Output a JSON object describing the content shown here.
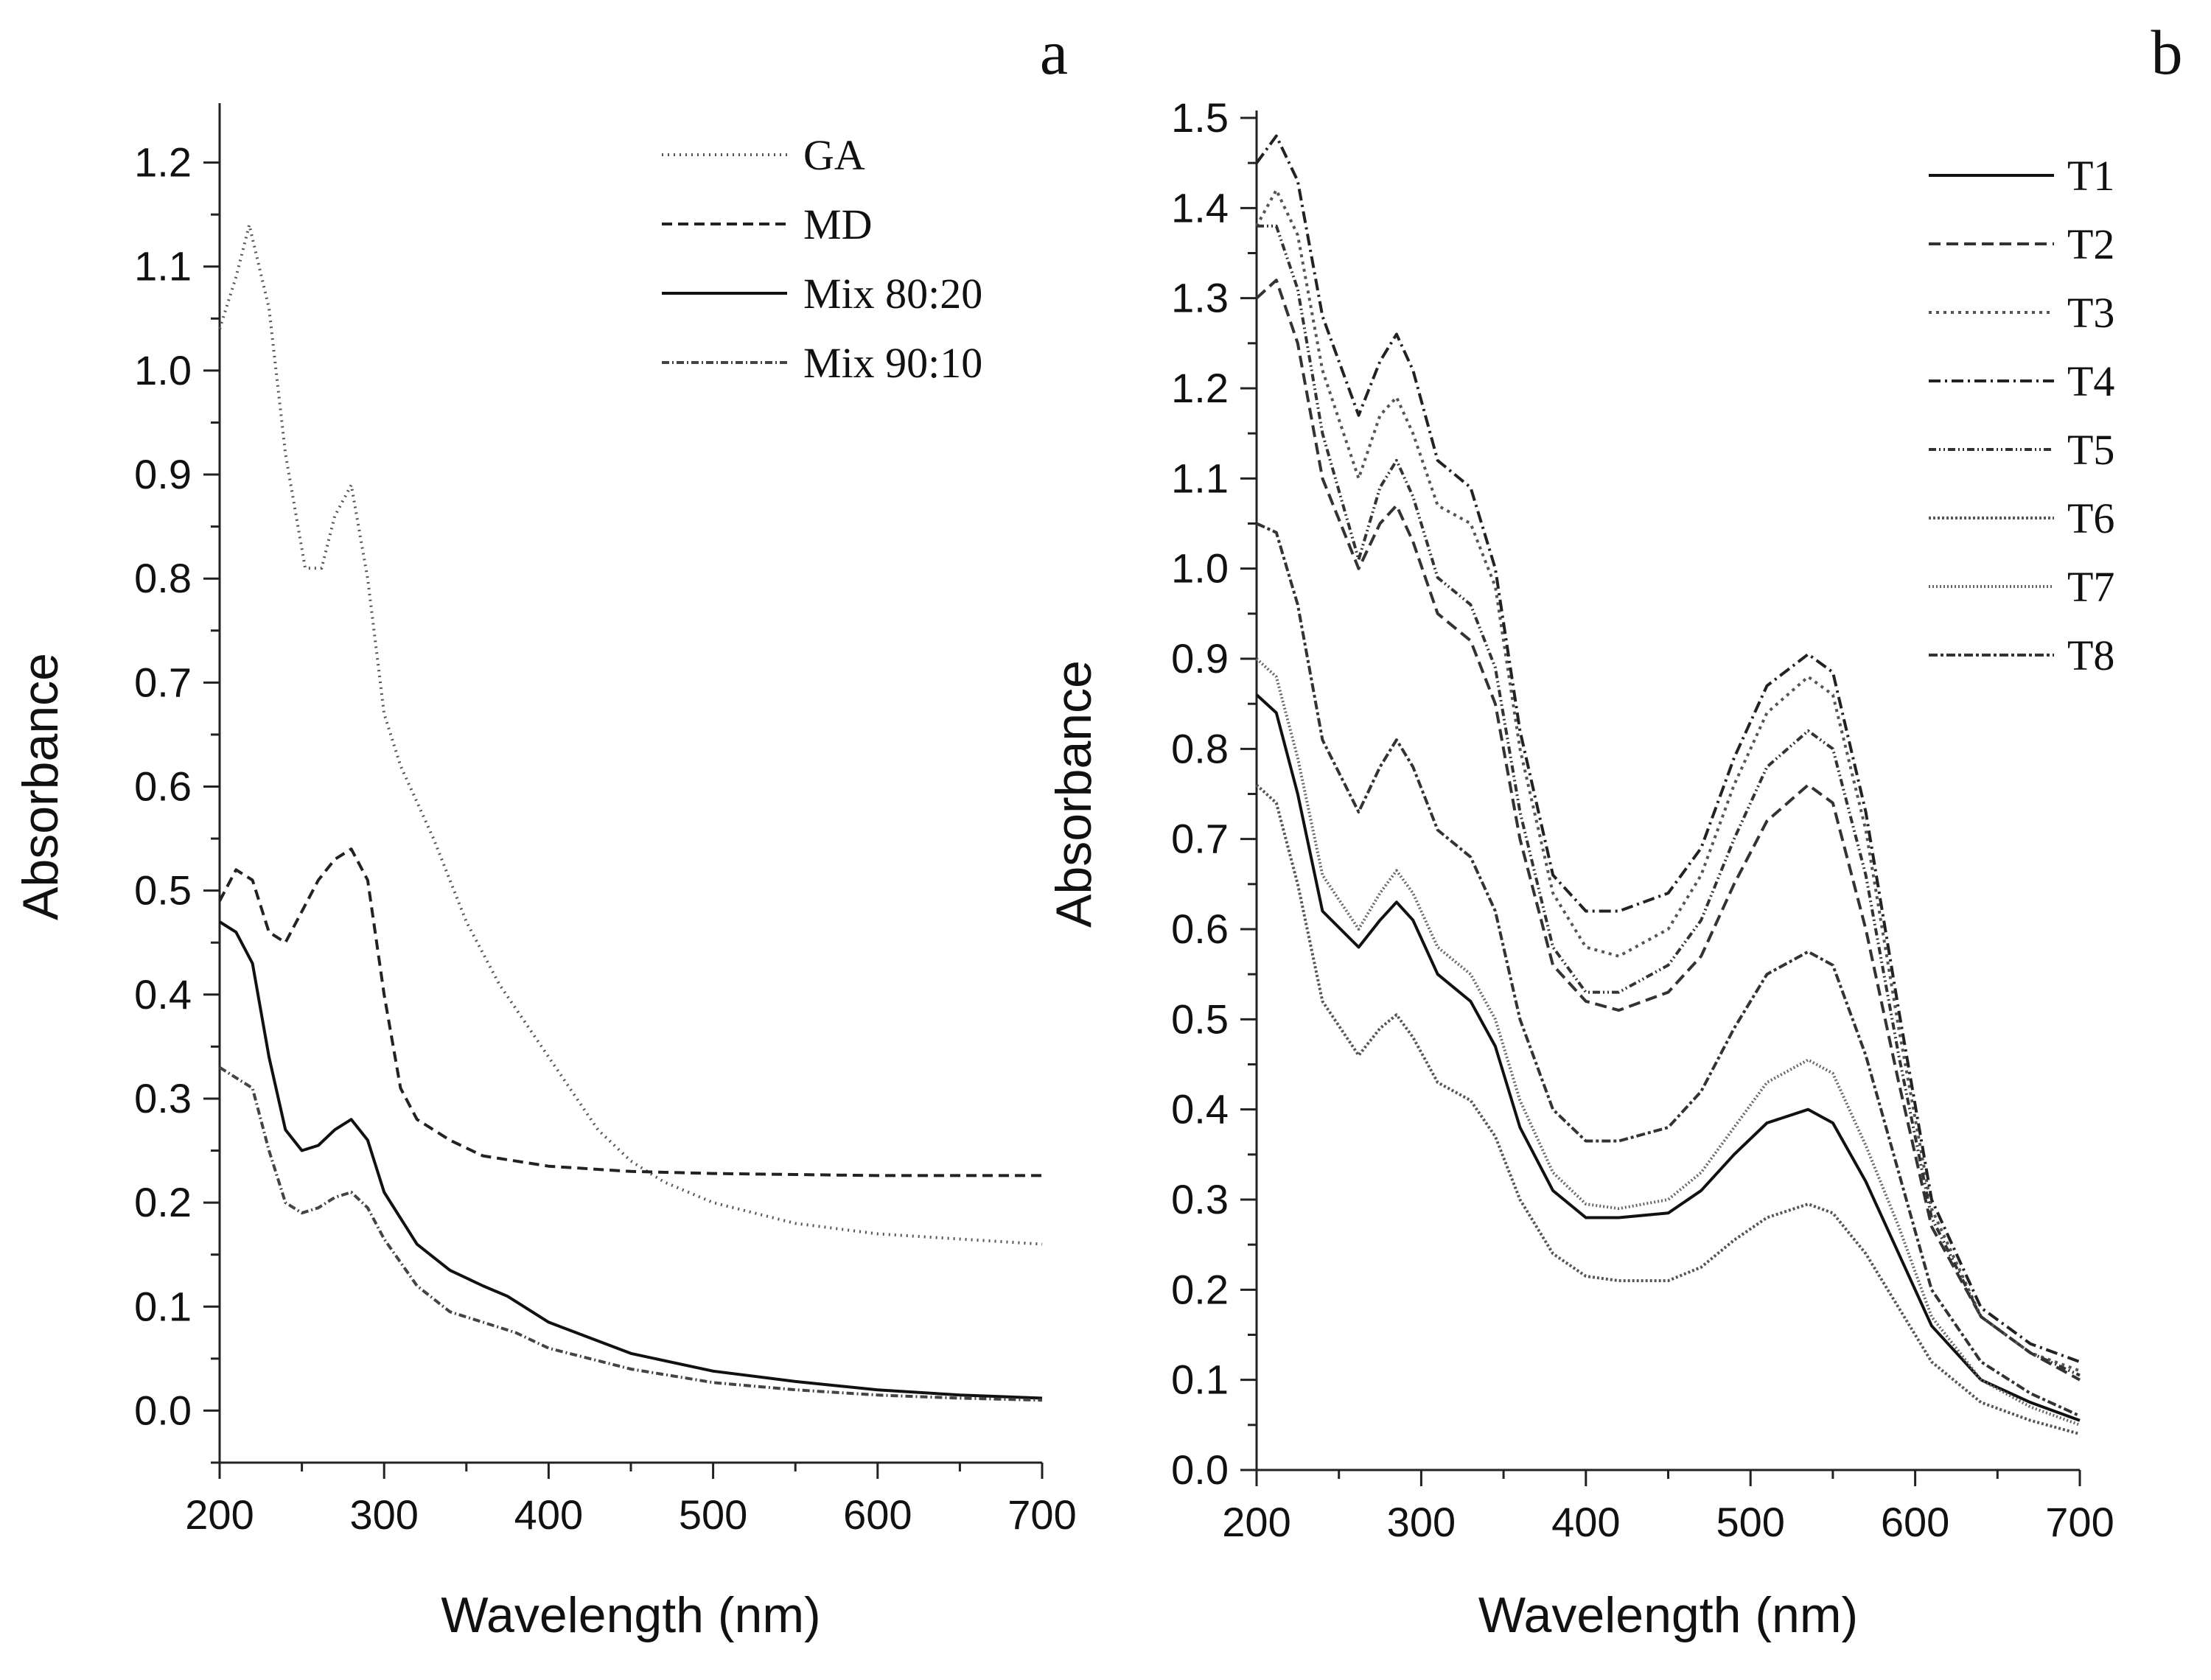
{
  "chart_data": [
    {
      "panel_label": "a",
      "type": "line",
      "xlabel": "Wavelength (nm)",
      "ylabel": "Absorbance",
      "xlim": [
        200,
        700
      ],
      "ylim": [
        -0.05,
        1.25
      ],
      "xticks": [
        "200",
        "300",
        "400",
        "500",
        "600",
        "700"
      ],
      "yticks": [
        "0.0",
        "0.1",
        "0.2",
        "0.3",
        "0.4",
        "0.5",
        "0.6",
        "0.7",
        "0.8",
        "0.9",
        "1.0",
        "1.1",
        "1.2"
      ],
      "legend_position": "top-right",
      "series": [
        {
          "name": "GA",
          "color": "#555555",
          "dash": "2,6",
          "x": [
            200,
            210,
            218,
            230,
            240,
            252,
            262,
            270,
            280,
            290,
            300,
            310,
            330,
            350,
            370,
            400,
            430,
            450,
            470,
            500,
            550,
            600,
            650,
            700
          ],
          "y": [
            1.04,
            1.09,
            1.14,
            1.06,
            0.92,
            0.81,
            0.81,
            0.86,
            0.89,
            0.8,
            0.67,
            0.62,
            0.55,
            0.47,
            0.41,
            0.34,
            0.27,
            0.24,
            0.22,
            0.2,
            0.18,
            0.17,
            0.165,
            0.16
          ]
        },
        {
          "name": "MD",
          "color": "#222222",
          "dash": "14,8",
          "x": [
            200,
            210,
            220,
            230,
            240,
            250,
            260,
            270,
            280,
            290,
            300,
            310,
            320,
            340,
            360,
            400,
            450,
            500,
            550,
            600,
            650,
            700
          ],
          "y": [
            0.49,
            0.52,
            0.51,
            0.46,
            0.45,
            0.48,
            0.51,
            0.53,
            0.54,
            0.51,
            0.4,
            0.31,
            0.28,
            0.26,
            0.245,
            0.235,
            0.23,
            0.228,
            0.227,
            0.226,
            0.226,
            0.226
          ]
        },
        {
          "name": "Mix 80:20",
          "color": "#111111",
          "dash": "",
          "x": [
            200,
            210,
            220,
            230,
            240,
            250,
            260,
            270,
            280,
            290,
            300,
            320,
            340,
            360,
            375,
            400,
            450,
            500,
            550,
            600,
            650,
            700
          ],
          "y": [
            0.47,
            0.46,
            0.43,
            0.34,
            0.27,
            0.25,
            0.255,
            0.27,
            0.28,
            0.26,
            0.21,
            0.16,
            0.135,
            0.12,
            0.11,
            0.085,
            0.055,
            0.038,
            0.028,
            0.02,
            0.015,
            0.012
          ]
        },
        {
          "name": "Mix 90:10",
          "color": "#444444",
          "dash": "10,4,2,4",
          "x": [
            200,
            210,
            220,
            230,
            240,
            250,
            260,
            270,
            280,
            290,
            300,
            320,
            340,
            360,
            380,
            400,
            450,
            500,
            550,
            600,
            650,
            700
          ],
          "y": [
            0.33,
            0.32,
            0.31,
            0.25,
            0.2,
            0.19,
            0.195,
            0.205,
            0.21,
            0.195,
            0.165,
            0.12,
            0.095,
            0.085,
            0.075,
            0.06,
            0.04,
            0.027,
            0.02,
            0.015,
            0.012,
            0.01
          ]
        }
      ]
    },
    {
      "panel_label": "b",
      "type": "line",
      "xlabel": "Wavelength (nm)",
      "ylabel": "Absorbance",
      "xlim": [
        200,
        700
      ],
      "ylim": [
        0.0,
        1.5
      ],
      "xticks": [
        "200",
        "300",
        "400",
        "500",
        "600",
        "700"
      ],
      "yticks": [
        "0.0",
        "0.1",
        "0.2",
        "0.3",
        "0.4",
        "0.5",
        "0.6",
        "0.7",
        "0.8",
        "0.9",
        "1.0",
        "1.1",
        "1.2",
        "1.3",
        "1.4",
        "1.5"
      ],
      "legend_position": "top-right",
      "series": [
        {
          "name": "T1",
          "color": "#111111",
          "dash": "",
          "x": [
            200,
            212,
            225,
            240,
            262,
            275,
            285,
            295,
            310,
            330,
            345,
            360,
            380,
            400,
            420,
            450,
            470,
            490,
            510,
            535,
            550,
            570,
            590,
            610,
            640,
            670,
            700
          ],
          "y": [
            0.86,
            0.84,
            0.75,
            0.62,
            0.58,
            0.61,
            0.63,
            0.61,
            0.55,
            0.52,
            0.47,
            0.38,
            0.31,
            0.28,
            0.28,
            0.285,
            0.31,
            0.35,
            0.385,
            0.4,
            0.385,
            0.32,
            0.24,
            0.16,
            0.1,
            0.075,
            0.055
          ]
        },
        {
          "name": "T2",
          "color": "#333333",
          "dash": "16,8",
          "x": [
            200,
            212,
            225,
            240,
            262,
            275,
            285,
            295,
            310,
            330,
            345,
            360,
            380,
            400,
            420,
            450,
            470,
            490,
            510,
            535,
            550,
            570,
            590,
            610,
            640,
            670,
            700
          ],
          "y": [
            1.3,
            1.32,
            1.25,
            1.1,
            1.0,
            1.05,
            1.07,
            1.03,
            0.95,
            0.92,
            0.85,
            0.7,
            0.56,
            0.52,
            0.51,
            0.53,
            0.57,
            0.65,
            0.72,
            0.76,
            0.74,
            0.6,
            0.43,
            0.27,
            0.17,
            0.13,
            0.1
          ]
        },
        {
          "name": "T3",
          "color": "#555555",
          "dash": "4,6",
          "x": [
            200,
            212,
            225,
            240,
            262,
            275,
            285,
            295,
            310,
            330,
            345,
            360,
            380,
            400,
            420,
            450,
            470,
            490,
            510,
            535,
            550,
            570,
            590,
            610,
            640,
            670,
            700
          ],
          "y": [
            1.38,
            1.42,
            1.37,
            1.22,
            1.1,
            1.17,
            1.19,
            1.15,
            1.07,
            1.05,
            0.98,
            0.8,
            0.64,
            0.58,
            0.57,
            0.6,
            0.66,
            0.76,
            0.84,
            0.88,
            0.86,
            0.71,
            0.49,
            0.29,
            0.17,
            0.13,
            0.11
          ]
        },
        {
          "name": "T4",
          "color": "#222222",
          "dash": "16,6,3,6",
          "x": [
            200,
            212,
            225,
            240,
            262,
            275,
            285,
            295,
            310,
            330,
            345,
            360,
            380,
            400,
            420,
            450,
            470,
            490,
            510,
            535,
            550,
            570,
            590,
            610,
            640,
            670,
            700
          ],
          "y": [
            1.45,
            1.48,
            1.43,
            1.28,
            1.17,
            1.23,
            1.26,
            1.22,
            1.12,
            1.09,
            1.0,
            0.82,
            0.66,
            0.62,
            0.62,
            0.64,
            0.69,
            0.79,
            0.87,
            0.905,
            0.885,
            0.73,
            0.51,
            0.3,
            0.18,
            0.14,
            0.12
          ]
        },
        {
          "name": "T5",
          "color": "#333333",
          "dash": "10,4,2,4,2,4",
          "x": [
            200,
            212,
            225,
            240,
            262,
            275,
            285,
            295,
            310,
            330,
            345,
            360,
            380,
            400,
            420,
            450,
            470,
            490,
            510,
            535,
            550,
            570,
            590,
            610,
            640,
            670,
            700
          ],
          "y": [
            1.38,
            1.38,
            1.31,
            1.15,
            1.01,
            1.09,
            1.12,
            1.08,
            0.99,
            0.96,
            0.89,
            0.73,
            0.58,
            0.53,
            0.53,
            0.56,
            0.61,
            0.7,
            0.78,
            0.82,
            0.8,
            0.66,
            0.46,
            0.28,
            0.17,
            0.13,
            0.105
          ]
        },
        {
          "name": "T6",
          "color": "#555555",
          "dash": "3,3",
          "x": [
            200,
            212,
            225,
            240,
            262,
            275,
            285,
            295,
            310,
            330,
            345,
            360,
            380,
            400,
            420,
            450,
            470,
            490,
            510,
            535,
            550,
            570,
            590,
            610,
            640,
            670,
            700
          ],
          "y": [
            0.76,
            0.74,
            0.65,
            0.52,
            0.46,
            0.49,
            0.505,
            0.48,
            0.43,
            0.41,
            0.37,
            0.3,
            0.24,
            0.215,
            0.21,
            0.21,
            0.225,
            0.255,
            0.28,
            0.295,
            0.285,
            0.24,
            0.18,
            0.12,
            0.075,
            0.055,
            0.04
          ]
        },
        {
          "name": "T7",
          "color": "#666666",
          "dash": "2,3",
          "x": [
            200,
            212,
            225,
            240,
            262,
            275,
            285,
            295,
            310,
            330,
            345,
            360,
            380,
            400,
            420,
            450,
            470,
            490,
            510,
            535,
            550,
            570,
            590,
            610,
            640,
            670,
            700
          ],
          "y": [
            0.9,
            0.88,
            0.79,
            0.66,
            0.6,
            0.64,
            0.665,
            0.64,
            0.58,
            0.55,
            0.5,
            0.41,
            0.33,
            0.295,
            0.29,
            0.3,
            0.33,
            0.38,
            0.43,
            0.455,
            0.44,
            0.36,
            0.27,
            0.17,
            0.1,
            0.07,
            0.05
          ]
        },
        {
          "name": "T8",
          "color": "#333333",
          "dash": "12,4,4,4",
          "x": [
            200,
            212,
            225,
            240,
            262,
            275,
            285,
            295,
            310,
            330,
            345,
            360,
            380,
            400,
            420,
            450,
            470,
            490,
            510,
            535,
            550,
            570,
            590,
            610,
            640,
            670,
            700
          ],
          "y": [
            1.05,
            1.04,
            0.96,
            0.81,
            0.73,
            0.78,
            0.81,
            0.78,
            0.71,
            0.68,
            0.62,
            0.5,
            0.4,
            0.365,
            0.365,
            0.38,
            0.42,
            0.49,
            0.55,
            0.575,
            0.56,
            0.46,
            0.33,
            0.2,
            0.12,
            0.085,
            0.06
          ]
        }
      ]
    }
  ]
}
